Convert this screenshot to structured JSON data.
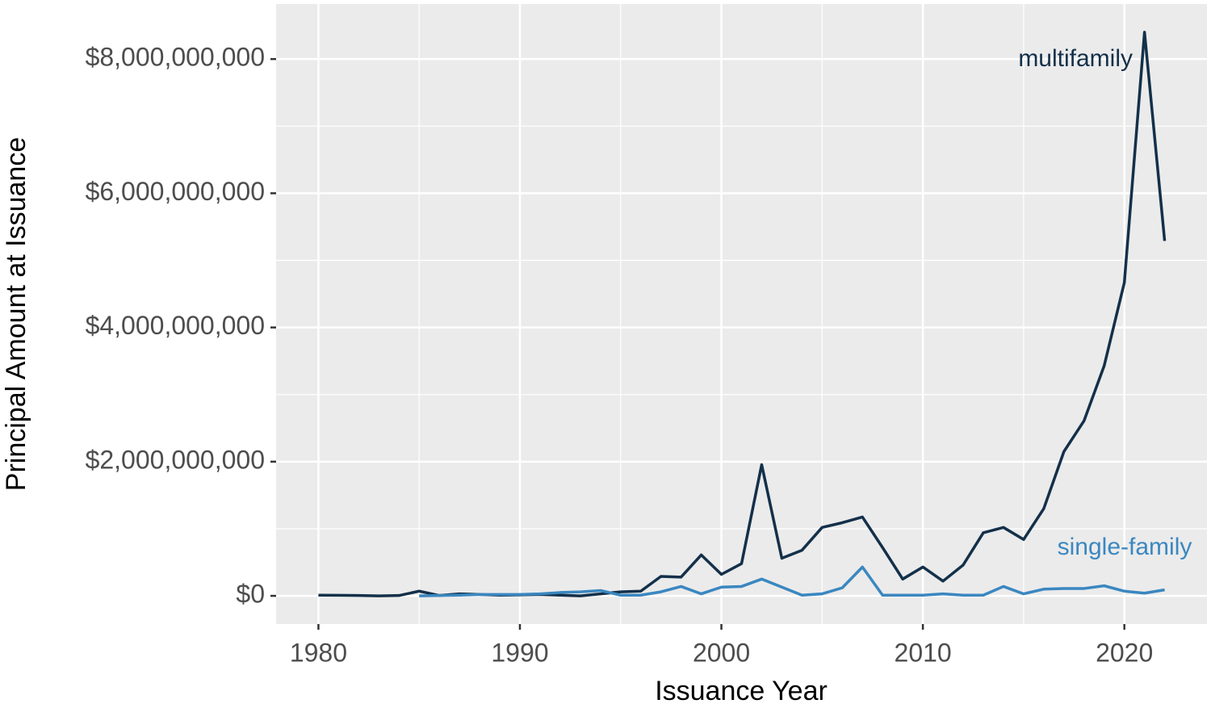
{
  "chart_data": {
    "type": "line",
    "x_label": "Issuance Year",
    "y_label": "Principal Amount at Issuance",
    "x": [
      1980,
      1981,
      1982,
      1983,
      1984,
      1985,
      1986,
      1987,
      1988,
      1989,
      1990,
      1991,
      1992,
      1993,
      1994,
      1995,
      1996,
      1997,
      1998,
      1999,
      2000,
      2001,
      2002,
      2003,
      2004,
      2005,
      2006,
      2007,
      2008,
      2009,
      2010,
      2011,
      2012,
      2013,
      2014,
      2015,
      2016,
      2017,
      2018,
      2019,
      2020,
      2021,
      2022
    ],
    "series": [
      {
        "name": "multifamily",
        "color": "#14304a",
        "values": [
          10000000,
          8000000,
          5000000,
          0,
          5000000,
          70000000,
          5000000,
          30000000,
          20000000,
          10000000,
          15000000,
          20000000,
          10000000,
          0,
          30000000,
          60000000,
          70000000,
          290000000,
          280000000,
          610000000,
          320000000,
          480000000,
          1955000000,
          560000000,
          680000000,
          1020000000,
          1090000000,
          1175000000,
          720000000,
          250000000,
          430000000,
          220000000,
          460000000,
          940000000,
          1020000000,
          840000000,
          1300000000,
          2150000000,
          2610000000,
          3430000000,
          4670000000,
          8400000000,
          5290000000
        ]
      },
      {
        "name": "single-family",
        "color": "#3a87c0",
        "values": [
          null,
          null,
          null,
          null,
          null,
          0,
          5000000,
          10000000,
          20000000,
          20000000,
          20000000,
          30000000,
          50000000,
          60000000,
          80000000,
          10000000,
          10000000,
          60000000,
          140000000,
          30000000,
          130000000,
          140000000,
          250000000,
          130000000,
          10000000,
          30000000,
          120000000,
          430000000,
          10000000,
          10000000,
          10000000,
          30000000,
          10000000,
          10000000,
          140000000,
          30000000,
          100000000,
          110000000,
          110000000,
          150000000,
          70000000,
          40000000,
          90000000
        ]
      }
    ],
    "xlim": [
      1977.9,
      2024.1
    ],
    "xticks": [
      1980,
      1990,
      2000,
      2010,
      2020
    ],
    "ylim": [
      -420000000,
      8820000000
    ],
    "yticks": [
      {
        "value": 0,
        "label": "$0"
      },
      {
        "value": 2000000000,
        "label": "$2,000,000,000"
      },
      {
        "value": 4000000000,
        "label": "$4,000,000,000"
      },
      {
        "value": 6000000000,
        "label": "$6,000,000,000"
      },
      {
        "value": 8000000000,
        "label": "$8,000,000,000"
      }
    ],
    "grid": true
  }
}
